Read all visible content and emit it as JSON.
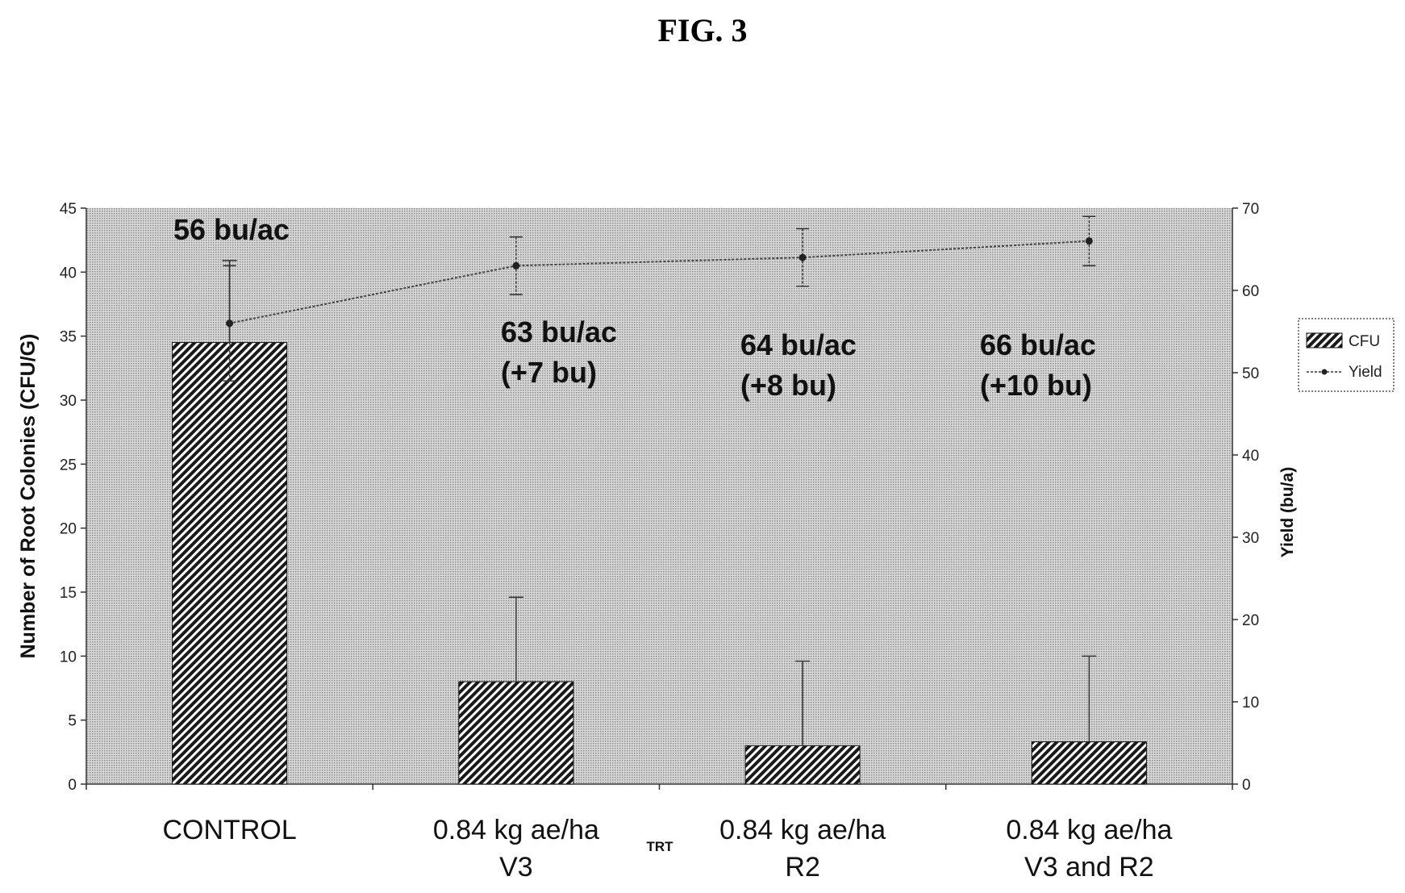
{
  "figure_title": "FIG. 3",
  "chart_data": {
    "type": "bar",
    "categories": [
      [
        "CONTROL"
      ],
      [
        "0.84 kg ae/ha",
        "V3"
      ],
      [
        "0.84 kg ae/ha",
        "R2"
      ],
      [
        "0.84 kg ae/ha",
        "V3 and R2"
      ]
    ],
    "xlabel": "TRT",
    "ylabel": "Number of Root Colonies (CFU/G)",
    "y2label": "Yield (bu/a)",
    "ylim": [
      0,
      45
    ],
    "y2lim": [
      0,
      70
    ],
    "yticks": [
      0,
      5,
      10,
      15,
      20,
      25,
      30,
      35,
      40,
      45
    ],
    "y2ticks": [
      0,
      10,
      20,
      30,
      40,
      50,
      60,
      70
    ],
    "series": [
      {
        "name": "CFU",
        "type": "bar",
        "axis": "left",
        "values": [
          34.5,
          8,
          3,
          3.3
        ],
        "error_upper": [
          6.4,
          6.6,
          6.6,
          6.7
        ]
      },
      {
        "name": "Yield",
        "type": "line",
        "axis": "right",
        "values": [
          56,
          63,
          64,
          66
        ],
        "error": [
          7,
          3.5,
          3.5,
          3
        ]
      }
    ],
    "annotations": [
      [
        "56 bu/ac"
      ],
      [
        "63 bu/ac",
        "(+7 bu)"
      ],
      [
        "64 bu/ac",
        "(+8 bu)"
      ],
      [
        "66 bu/ac",
        "(+10 bu)"
      ]
    ],
    "legend": {
      "position": "right",
      "entries": [
        "CFU",
        "Yield"
      ]
    },
    "grid": false,
    "colors": {
      "bar_pattern": "diagonal-hatch-black",
      "plot_background": "dotted-gray"
    }
  }
}
